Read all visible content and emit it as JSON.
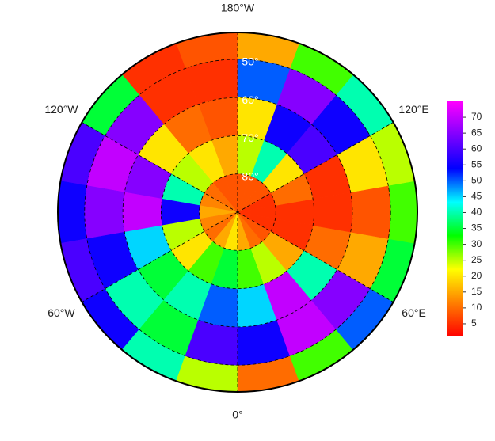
{
  "map": {
    "lon_ticks": [
      {
        "value": 180,
        "label": "180°W"
      },
      {
        "value": -120,
        "label": "120°W"
      },
      {
        "value": 120,
        "label": "120°E"
      },
      {
        "value": -60,
        "label": "60°W"
      },
      {
        "value": 60,
        "label": "60°E"
      },
      {
        "value": 0,
        "label": "0°"
      }
    ],
    "lat_ticks": [
      {
        "value": 50,
        "label": "50°"
      },
      {
        "value": 60,
        "label": "60°"
      },
      {
        "value": 70,
        "label": "70°"
      },
      {
        "value": 80,
        "label": "80°"
      }
    ],
    "lat_edges": [
      43,
      50,
      60,
      70,
      80,
      90
    ],
    "lon_edges": [
      -180,
      -160,
      -140,
      -120,
      -100,
      -80,
      -60,
      -40,
      -20,
      0,
      20,
      40,
      60,
      80,
      100,
      120,
      140,
      160,
      180
    ],
    "values": [
      [
        8,
        5,
        35,
        60,
        55,
        60,
        55,
        40,
        25,
        10,
        30,
        50,
        35,
        30,
        25,
        40,
        30,
        15
      ],
      [
        5,
        5,
        65,
        70,
        65,
        55,
        40,
        35,
        60,
        55,
        70,
        65,
        15,
        8,
        20,
        55,
        65,
        50
      ],
      [
        8,
        10,
        20,
        65,
        70,
        45,
        35,
        40,
        50,
        45,
        70,
        40,
        10,
        5,
        5,
        60,
        55,
        20
      ],
      [
        15,
        20,
        25,
        40,
        55,
        25,
        20,
        30,
        35,
        30,
        25,
        15,
        5,
        5,
        10,
        20,
        40,
        25
      ],
      [
        8,
        8,
        10,
        12,
        15,
        12,
        10,
        15,
        20,
        15,
        10,
        8,
        5,
        5,
        5,
        8,
        8,
        8
      ]
    ],
    "colormap": [
      "#ff0000",
      "#ff7f00",
      "#ffff00",
      "#00ff00",
      "#00ffff",
      "#0000ff",
      "#7f00ff",
      "#ff00ff"
    ],
    "clim": [
      1,
      75
    ],
    "cticks": [
      5,
      10,
      15,
      20,
      25,
      30,
      35,
      40,
      45,
      50,
      55,
      60,
      65,
      70
    ]
  }
}
